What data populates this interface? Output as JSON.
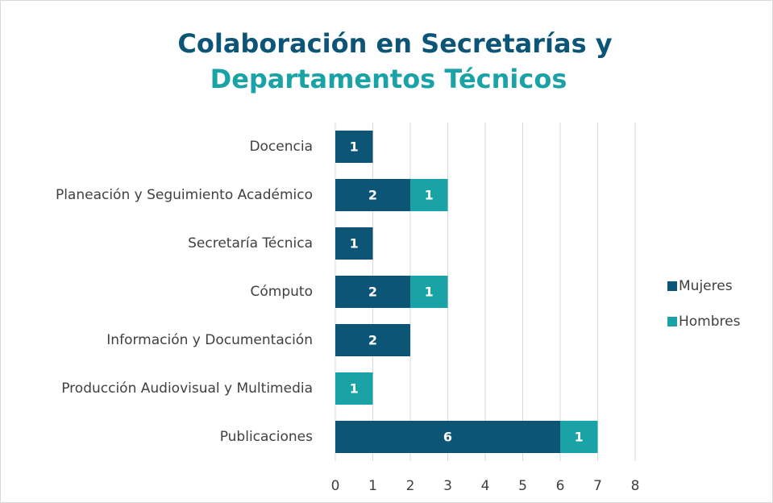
{
  "chart_data": {
    "type": "stacked-bar-horizontal",
    "title": [
      "Colaboración en Secretarías y",
      "Departamentos Técnicos"
    ],
    "categories": [
      "Docencia",
      "Planeación y Seguimiento Académico",
      "Secretaría Técnica",
      "Cómputo",
      "Información y Documentación",
      "Producción Audiovisual y Multimedia",
      "Publicaciones"
    ],
    "series": [
      {
        "name": "Mujeres",
        "color": "#0d5577",
        "values": [
          1,
          2,
          1,
          2,
          2,
          null,
          6
        ]
      },
      {
        "name": "Hombres",
        "color": "#1aa3a6",
        "values": [
          null,
          1,
          null,
          1,
          null,
          1,
          1
        ]
      }
    ],
    "xlim": [
      0,
      8
    ],
    "xticks": [
      0,
      1,
      2,
      3,
      4,
      5,
      6,
      7,
      8
    ],
    "grid": true,
    "legend": "right"
  }
}
